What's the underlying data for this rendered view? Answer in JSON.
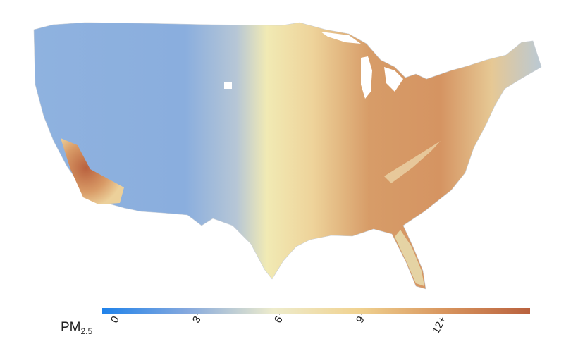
{
  "legend": {
    "title": "PM",
    "subscript": "2.5",
    "lim": [
      -0.5,
      15.2
    ],
    "ticks": [
      0,
      3,
      6,
      9,
      {
        "value": 12,
        "label": "12+"
      }
    ],
    "colors": [
      "#1f82ea",
      "#86a9de",
      "#eeeccc",
      "#f0d290",
      "#d8955e",
      "#b9613e"
    ]
  }
}
